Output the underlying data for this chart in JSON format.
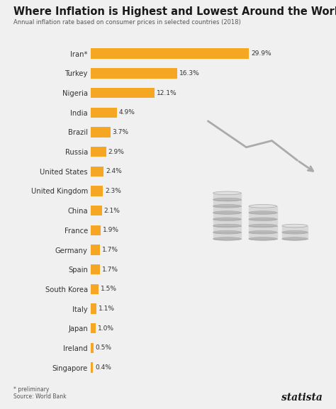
{
  "title": "Where Inflation is Highest and Lowest Around the World",
  "subtitle": "Annual inflation rate based on consumer prices in selected countries (2018)",
  "countries": [
    "Iran*",
    "Turkey",
    "Nigeria",
    "India",
    "Brazil",
    "Russia",
    "United States",
    "United Kingdom",
    "China",
    "France",
    "Germany",
    "Spain",
    "South Korea",
    "Italy",
    "Japan",
    "Ireland",
    "Singapore"
  ],
  "values": [
    29.9,
    16.3,
    12.1,
    4.9,
    3.7,
    2.9,
    2.4,
    2.3,
    2.1,
    1.9,
    1.7,
    1.7,
    1.5,
    1.1,
    1.0,
    0.5,
    0.4
  ],
  "bar_color": "#F5A623",
  "bg_color": "#F0F0F0",
  "title_color": "#1a1a1a",
  "subtitle_color": "#555555",
  "label_color": "#333333",
  "value_color": "#333333",
  "icon_color": "#CCCCCC",
  "footer_note": "* preliminary",
  "footer_source": "Source: World Bank",
  "footer_brand": "statista",
  "xlim": [
    0,
    33
  ]
}
